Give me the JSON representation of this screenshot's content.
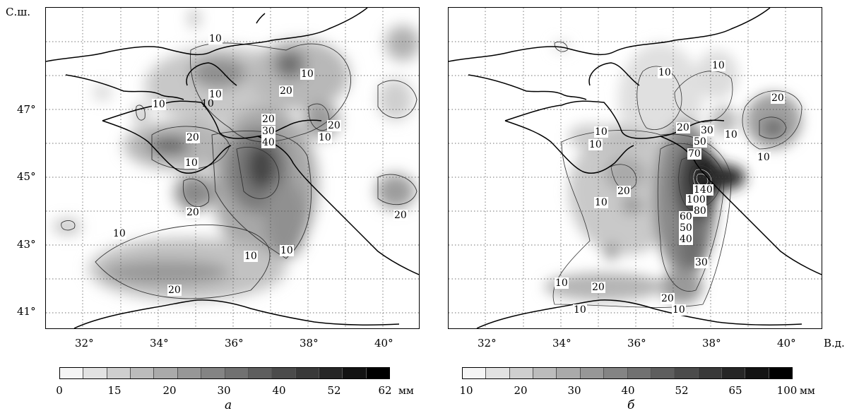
{
  "axis": {
    "ylabel": "С.ш.",
    "xlabel": "В.д."
  },
  "y_ticks": [
    "47°",
    "45°",
    "43°",
    "41°"
  ],
  "x_ticks": [
    "32°",
    "34°",
    "36°",
    "38°",
    "40°"
  ],
  "panels": [
    {
      "letter": "а",
      "unit": "мм",
      "colorbar_labels": [
        "0",
        "15",
        "20",
        "30",
        "40",
        "52",
        "62"
      ],
      "colorbar_steps": 14,
      "contour_labels": [
        "10",
        "10",
        "10",
        "20",
        "10",
        "10",
        "20",
        "30",
        "40",
        "20",
        "20",
        "10",
        "20",
        "10",
        "20",
        "10",
        "10",
        "10",
        "20"
      ]
    },
    {
      "letter": "б",
      "unit": "мм",
      "colorbar_labels": [
        "10",
        "20",
        "30",
        "40",
        "52",
        "65",
        "100"
      ],
      "colorbar_steps": 14,
      "contour_labels": [
        "10",
        "10",
        "10",
        "20",
        "20",
        "30",
        "10",
        "50",
        "70",
        "10",
        "10",
        "20",
        "10",
        "140",
        "100",
        "80",
        "60",
        "50",
        "40",
        "30",
        "20",
        "10",
        "10",
        "20",
        "10"
      ]
    }
  ]
}
